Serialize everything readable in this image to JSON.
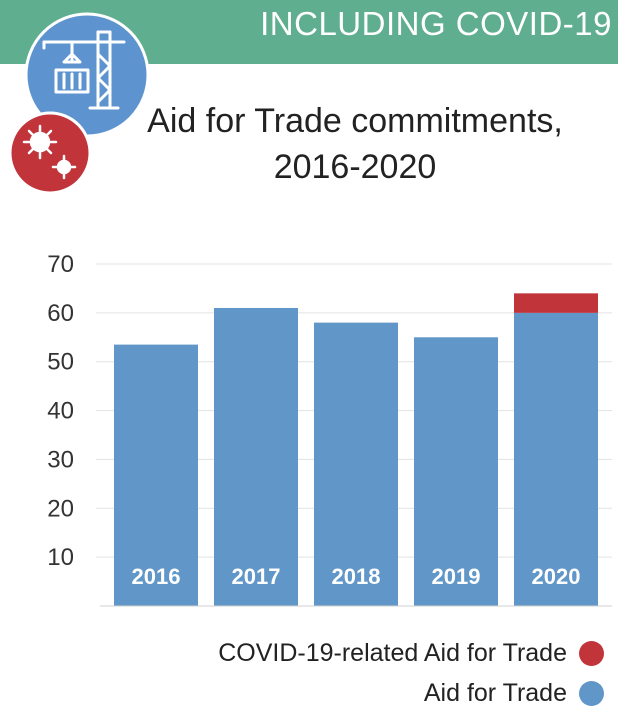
{
  "header": {
    "banner_text": "INCLUDING COVID-19",
    "crane_icon": "construction-crane-icon",
    "virus_icon": "virus-icon",
    "banner_color": "#5fae8f"
  },
  "chart_data": {
    "type": "bar",
    "stacked": true,
    "title": "Aid for Trade commitments, 2016-2020",
    "title_lines": [
      "Aid for Trade commitments,",
      "2016-2020"
    ],
    "categories": [
      "2016",
      "2017",
      "2018",
      "2019",
      "2020"
    ],
    "series": [
      {
        "name": "Aid for Trade",
        "color": "#6096c8",
        "values": [
          53.5,
          61,
          58,
          55,
          60
        ]
      },
      {
        "name": "COVID-19-related Aid for Trade",
        "color": "#c0343a",
        "values": [
          0,
          0,
          0,
          0,
          4.3
        ]
      }
    ],
    "ylim": [
      0,
      70
    ],
    "yticks": [
      10,
      20,
      30,
      40,
      50,
      60,
      70
    ],
    "grid": true,
    "legend": "bottom-right",
    "xlabel": "",
    "ylabel": ""
  },
  "legend": {
    "items": [
      {
        "label": "COVID-19-related Aid for Trade",
        "color": "#c0343a"
      },
      {
        "label": "Aid for Trade",
        "color": "#6096c8"
      }
    ]
  }
}
